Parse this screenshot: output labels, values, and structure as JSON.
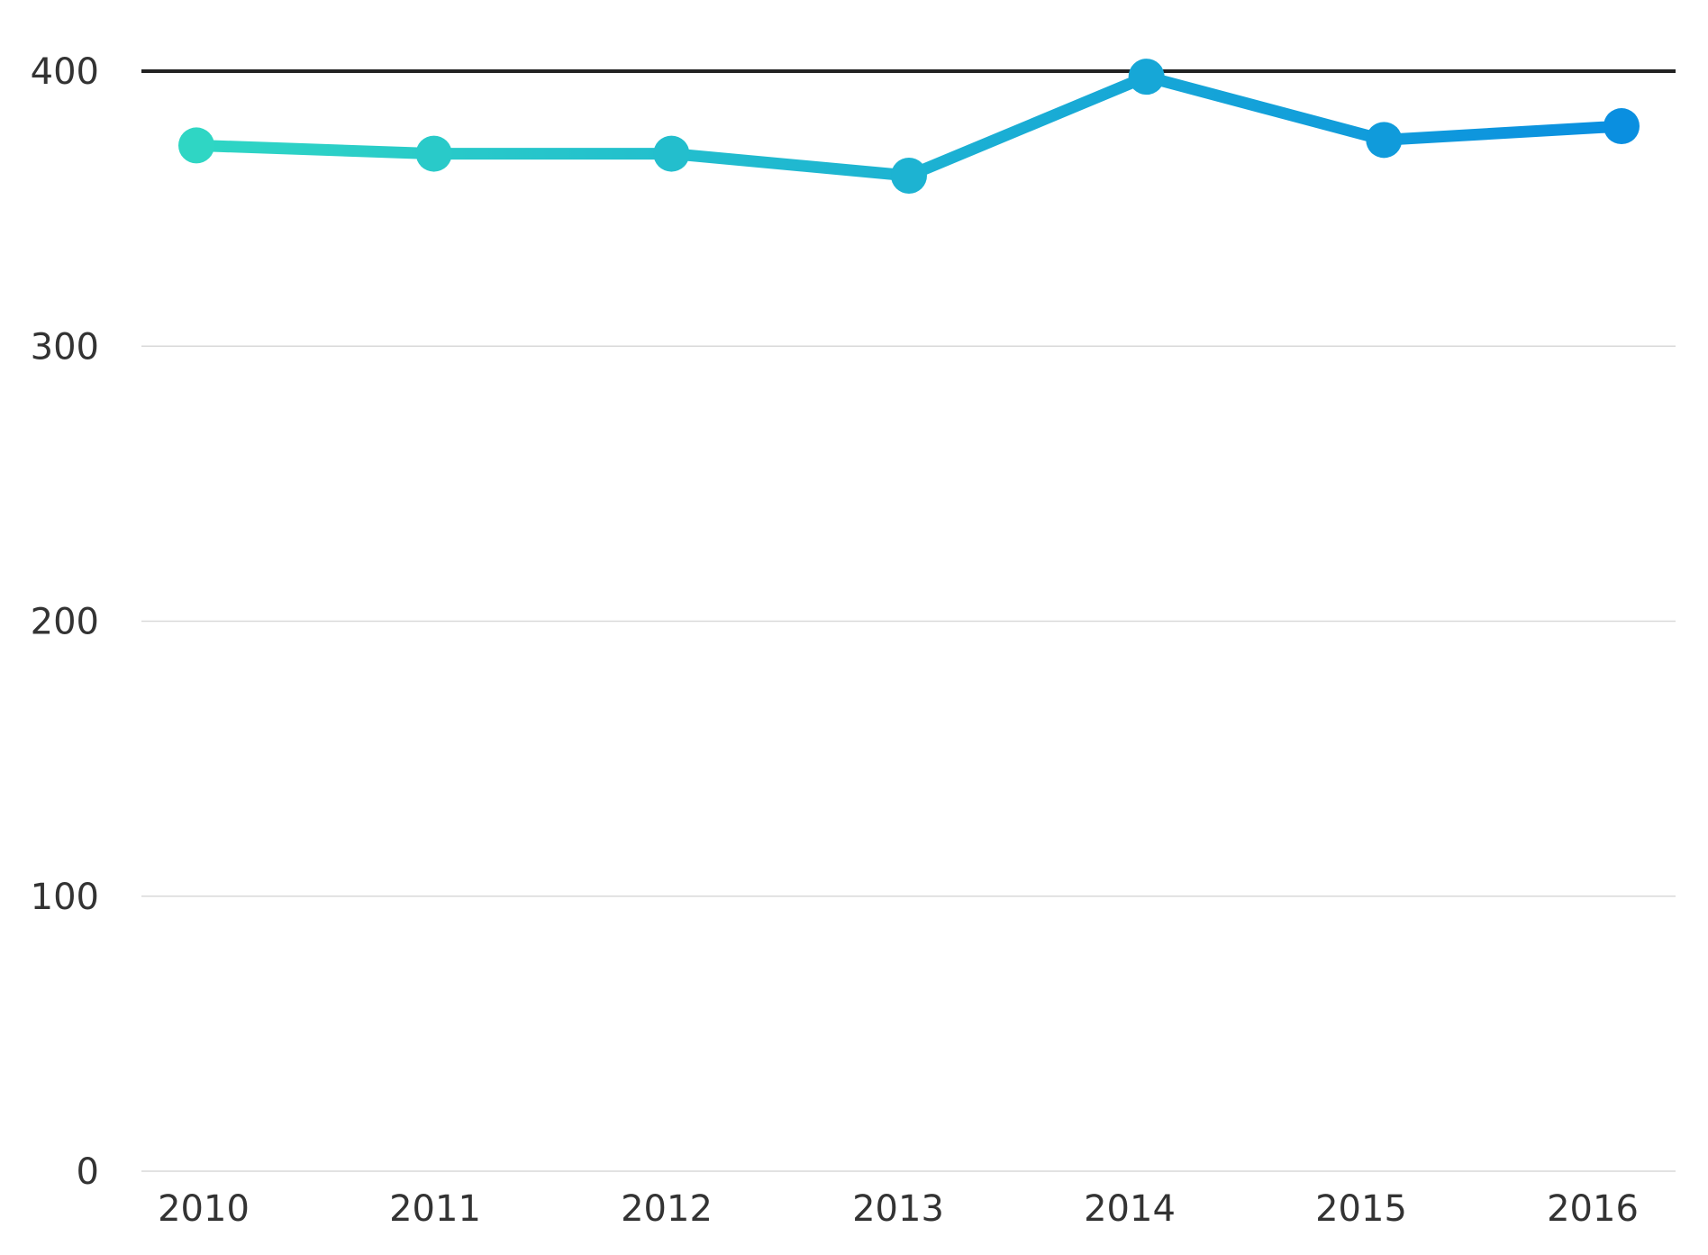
{
  "chart_data": {
    "type": "line",
    "title": "",
    "xlabel": "",
    "ylabel": "",
    "categories": [
      "2010",
      "2011",
      "2012",
      "2013",
      "2014",
      "2015",
      "2016"
    ],
    "series": [
      {
        "values": [
          373,
          370,
          370,
          362,
          398,
          375,
          380
        ]
      }
    ],
    "ylim": [
      0,
      400
    ],
    "yticks": [
      0,
      100,
      200,
      300,
      400
    ],
    "ytick_labels": [
      "0",
      "100",
      "200",
      "300",
      "400"
    ],
    "grid": true,
    "legend": "none",
    "colors": {
      "gradient_start": "#2fd6c4",
      "gradient_end": "#0a8fe0",
      "grid": "#d9d9d9",
      "top_gridline": "#222222",
      "tick_text": "#333333"
    }
  }
}
